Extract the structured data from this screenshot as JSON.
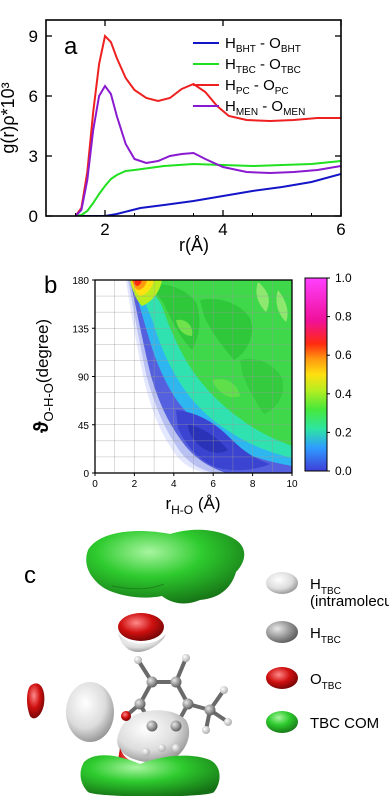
{
  "panel_a": {
    "letter": "a",
    "ylabel": "g(r)ρ*10³",
    "xlabel": "r(Å)",
    "legend": [
      {
        "base": "H",
        "sub1": "BHT",
        "mid": " - O",
        "sub2": "BHT"
      },
      {
        "base": "H",
        "sub1": "TBC",
        "mid": " - O",
        "sub2": "TBC"
      },
      {
        "base": "H",
        "sub1": "PC",
        "mid": " - O",
        "sub2": "PC"
      },
      {
        "base": "H",
        "sub1": "MEN",
        "mid": " - O",
        "sub2": "MEN"
      }
    ]
  },
  "panel_b": {
    "letter": "b",
    "ylabel_base": "ϑ",
    "ylabel_sub": "O-H-O",
    "ylabel_tail": "(degree)",
    "xlabel_base": "r",
    "xlabel_sub": "H-O",
    "xlabel_tail": " (Å)",
    "colorbar_ticks": [
      "1.0",
      "0.8",
      "0.6",
      "0.4",
      "0.2",
      "0.0"
    ]
  },
  "panel_c": {
    "letter": "c",
    "legend": [
      {
        "base": "H",
        "sub": "TBC",
        "line2": "(intramolecular)"
      },
      {
        "base": "H",
        "sub": "TBC",
        "line2": ""
      },
      {
        "base": "O",
        "sub": "TBC",
        "line2": ""
      },
      {
        "base": "TBC COM",
        "sub": "",
        "line2": ""
      }
    ]
  },
  "colors": {
    "bht": "#1515c8",
    "tbc": "#20e020",
    "pc": "#ee2020",
    "men": "#8a1ad0",
    "surface_green": "#2ecb2e",
    "surface_red": "#d01010",
    "surface_white": "#e8e8e8"
  },
  "chart_data": [
    {
      "type": "line",
      "xlabel": "r(Å)",
      "ylabel": "g(r)ρ*10³",
      "xlim": [
        1,
        6
      ],
      "ylim": [
        0,
        9.8
      ],
      "xticks": [
        2,
        4,
        6
      ],
      "yticks": [
        0,
        3,
        6,
        9
      ],
      "grid": false,
      "legend_position": "top-right",
      "series": [
        {
          "name": "HBHT - OBHT",
          "color": "#1515c8",
          "x": [
            1.5,
            1.8,
            2.0,
            2.2,
            2.4,
            2.6,
            3.0,
            3.5,
            4.0,
            4.5,
            5.0,
            5.5,
            6.0
          ],
          "y": [
            0,
            0,
            0,
            0.1,
            0.25,
            0.4,
            0.55,
            0.75,
            1.0,
            1.25,
            1.45,
            1.7,
            2.1
          ]
        },
        {
          "name": "HTBC - OTBC",
          "color": "#20e020",
          "x": [
            1.5,
            1.6,
            1.7,
            1.8,
            1.9,
            2.0,
            2.1,
            2.2,
            2.35,
            2.5,
            3.0,
            3.5,
            4.0,
            4.5,
            5.0,
            5.5,
            6.0
          ],
          "y": [
            0,
            0.05,
            0.25,
            0.65,
            1.1,
            1.5,
            1.85,
            2.05,
            2.25,
            2.3,
            2.5,
            2.6,
            2.55,
            2.5,
            2.55,
            2.6,
            2.75
          ]
        },
        {
          "name": "HPC - OPC",
          "color": "#ee2020",
          "x": [
            1.5,
            1.6,
            1.7,
            1.8,
            1.9,
            2.0,
            2.1,
            2.2,
            2.35,
            2.5,
            2.7,
            2.9,
            3.1,
            3.3,
            3.5,
            3.7,
            3.9,
            4.1,
            4.4,
            4.8,
            5.2,
            5.6,
            6.0
          ],
          "y": [
            0,
            0.4,
            2.2,
            5.2,
            7.6,
            9.0,
            8.7,
            7.9,
            6.9,
            6.3,
            5.9,
            5.75,
            5.9,
            6.35,
            6.6,
            6.2,
            5.5,
            5.0,
            4.8,
            4.75,
            4.8,
            4.9,
            4.9
          ]
        },
        {
          "name": "HMEN - OMEN",
          "color": "#8a1ad0",
          "x": [
            1.5,
            1.6,
            1.7,
            1.8,
            1.9,
            2.0,
            2.1,
            2.2,
            2.35,
            2.5,
            2.7,
            2.9,
            3.1,
            3.3,
            3.5,
            3.7,
            4.0,
            4.4,
            4.8,
            5.2,
            5.6,
            6.0
          ],
          "y": [
            0,
            0.3,
            1.8,
            4.3,
            6.0,
            6.5,
            6.1,
            5.0,
            3.6,
            2.85,
            2.65,
            2.75,
            3.0,
            3.1,
            3.15,
            2.85,
            2.45,
            2.2,
            2.15,
            2.2,
            2.3,
            2.5
          ]
        }
      ]
    },
    {
      "type": "heatmap",
      "xlabel": "rH-O (Å)",
      "ylabel": "ϑO-H-O (degree)",
      "xlim": [
        0,
        10
      ],
      "ylim": [
        0,
        180
      ],
      "xticks": [
        0,
        2,
        4,
        6,
        8,
        10
      ],
      "yticks": [
        0,
        45,
        90,
        135,
        180
      ],
      "colorbar_range": [
        0.0,
        1.0
      ],
      "colorbar_ticks": [
        0.0,
        0.2,
        0.4,
        0.6,
        0.8,
        1.0
      ],
      "grid": true,
      "description_peak": {
        "x": 2.0,
        "y": 175,
        "value": 0.65
      }
    }
  ]
}
